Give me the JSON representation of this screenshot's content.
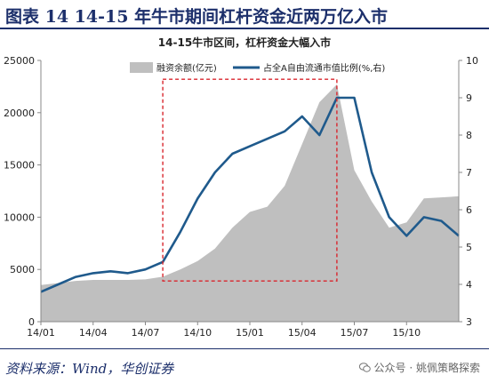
{
  "header": {
    "title": "图表 14   14-15 年牛市期间杠杆资金近两万亿入市"
  },
  "footer": {
    "source": "资料来源：Wind，华创证券",
    "watermark": "公众号 · 姚佩策略探索"
  },
  "colors": {
    "area": "#bfbfbf",
    "line": "#1f5a8c",
    "box": "#d9262d",
    "header": "#1c2f6b"
  },
  "chart_data": {
    "type": "line",
    "title": "14-15牛市区间，杠杆资金大幅入市",
    "x_tick_labels": [
      "14/01",
      "14/04",
      "14/07",
      "14/10",
      "15/01",
      "15/04",
      "15/07",
      "15/10"
    ],
    "x_range": [
      "2014-01",
      "2016-01"
    ],
    "y_left": {
      "ylim": [
        0,
        25000
      ],
      "ticks": [
        0,
        5000,
        10000,
        15000,
        20000,
        25000
      ]
    },
    "y_right": {
      "ylim": [
        3,
        10
      ],
      "ticks": [
        3,
        4,
        5,
        6,
        7,
        8,
        9,
        10
      ]
    },
    "legend_position": "top",
    "series": [
      {
        "name": "融资余额(亿元)",
        "chart_type": "area",
        "axis": "left",
        "x": [
          "2014-01",
          "2014-02",
          "2014-03",
          "2014-04",
          "2014-05",
          "2014-06",
          "2014-07",
          "2014-08",
          "2014-09",
          "2014-10",
          "2014-11",
          "2014-12",
          "2015-01",
          "2015-02",
          "2015-03",
          "2015-04",
          "2015-05",
          "2015-06",
          "2015-07",
          "2015-08",
          "2015-09",
          "2015-10",
          "2015-11",
          "2015-12",
          "2016-01"
        ],
        "values": [
          3500,
          3700,
          3900,
          4000,
          4000,
          4000,
          4050,
          4300,
          5000,
          5800,
          7000,
          9000,
          10500,
          11000,
          13000,
          17000,
          21000,
          22700,
          14500,
          11500,
          9000,
          9500,
          11800,
          11900,
          12000
        ]
      },
      {
        "name": "占全A自由流通市值比例(%,右)",
        "chart_type": "line",
        "axis": "right",
        "x": [
          "2014-01",
          "2014-02",
          "2014-03",
          "2014-04",
          "2014-05",
          "2014-06",
          "2014-07",
          "2014-08",
          "2014-09",
          "2014-10",
          "2014-11",
          "2014-12",
          "2015-01",
          "2015-02",
          "2015-03",
          "2015-04",
          "2015-05",
          "2015-06",
          "2015-07",
          "2015-08",
          "2015-09",
          "2015-10",
          "2015-11",
          "2015-12",
          "2016-01"
        ],
        "values": [
          3.8,
          4.0,
          4.2,
          4.3,
          4.35,
          4.3,
          4.4,
          4.6,
          5.4,
          6.3,
          7.0,
          7.5,
          7.7,
          7.9,
          8.1,
          8.5,
          8.0,
          9.0,
          9.0,
          7.0,
          5.8,
          5.3,
          5.8,
          5.7,
          5.3
        ]
      }
    ],
    "annotation_box": {
      "x_start": "2014-08",
      "x_end": "2015-06",
      "y_left_range": [
        3900,
        23200
      ],
      "style": "red dashed rectangle"
    }
  }
}
